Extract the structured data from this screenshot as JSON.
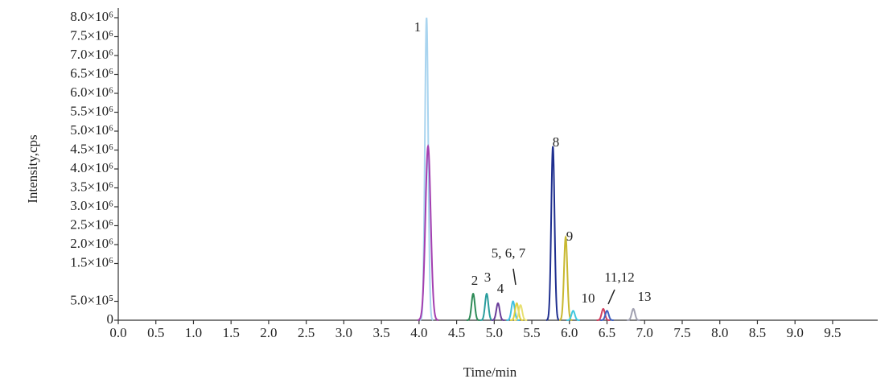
{
  "chart_data": {
    "type": "chromatogram",
    "x_label": "Time/min",
    "y_label": "Intensity,cps",
    "xlim": [
      0,
      10.1
    ],
    "ylim": [
      0,
      8000000
    ],
    "xticks": [
      {
        "value": 0,
        "label": "0.0"
      },
      0.5,
      {
        "value": 1,
        "label": "1.0"
      },
      1.5,
      {
        "value": 2,
        "label": "2.0"
      },
      2.5,
      {
        "value": 3,
        "label": "3.0"
      },
      3.5,
      {
        "value": 4,
        "label": "4.0"
      },
      4.5,
      {
        "value": 5,
        "label": "5.0"
      },
      5.5,
      {
        "value": 6,
        "label": "6.0"
      },
      6.5,
      {
        "value": 7,
        "label": "7.0"
      },
      7.5,
      {
        "value": 8,
        "label": "8.0"
      },
      8.5,
      {
        "value": 9,
        "label": "9.0"
      },
      9.5
    ],
    "yticks": [
      0,
      {
        "value": 500000,
        "label": "5.0×10⁵"
      },
      {
        "value": 1500000,
        "label": "1.5×10⁶"
      },
      {
        "value": 2000000,
        "label": "2.0×10⁶"
      },
      {
        "value": 2500000,
        "label": "2.5×10⁶"
      },
      {
        "value": 3000000,
        "label": "3.0×10⁶"
      },
      {
        "value": 3500000,
        "label": "3.5×10⁶"
      },
      {
        "value": 4000000,
        "label": "4.0×10⁶"
      },
      {
        "value": 4500000,
        "label": "4.5×10⁶"
      },
      {
        "value": 5000000,
        "label": "5.0×10⁶"
      },
      {
        "value": 5500000,
        "label": "5.5×10⁶"
      },
      {
        "value": 6000000,
        "label": "6.0×10⁶"
      },
      {
        "value": 6500000,
        "label": "6.5×10⁶"
      },
      {
        "value": 7000000,
        "label": "7.0×10⁶"
      },
      {
        "value": 7500000,
        "label": "7.5×10⁶"
      },
      {
        "value": 8000000,
        "label": "8.0×10⁶"
      }
    ],
    "peaks": {
      "x": [
        4.1,
        4.12,
        4.72,
        4.9,
        5.05,
        5.25,
        5.3,
        5.35,
        5.78,
        5.95,
        6.05,
        6.45,
        6.5,
        6.85
      ],
      "values": [
        8000000,
        4600000,
        700000,
        700000,
        450000,
        500000,
        450000,
        400000,
        4600000,
        2200000,
        250000,
        300000,
        250000,
        300000
      ],
      "colors": [
        "#a9d4ef",
        "#a43fb0",
        "#2e8b57",
        "#2a9d9d",
        "#6a3d9a",
        "#40c0e0",
        "#e0d040",
        "#e8e070",
        "#1f2f8f",
        "#c8b830",
        "#40c8e0",
        "#d04060",
        "#4060c0",
        "#a0a0b0"
      ]
    },
    "annotations": [
      "1",
      "2",
      "3",
      "4",
      "5, 6, 7",
      "8",
      "9",
      "10",
      "11,12",
      "13"
    ]
  }
}
